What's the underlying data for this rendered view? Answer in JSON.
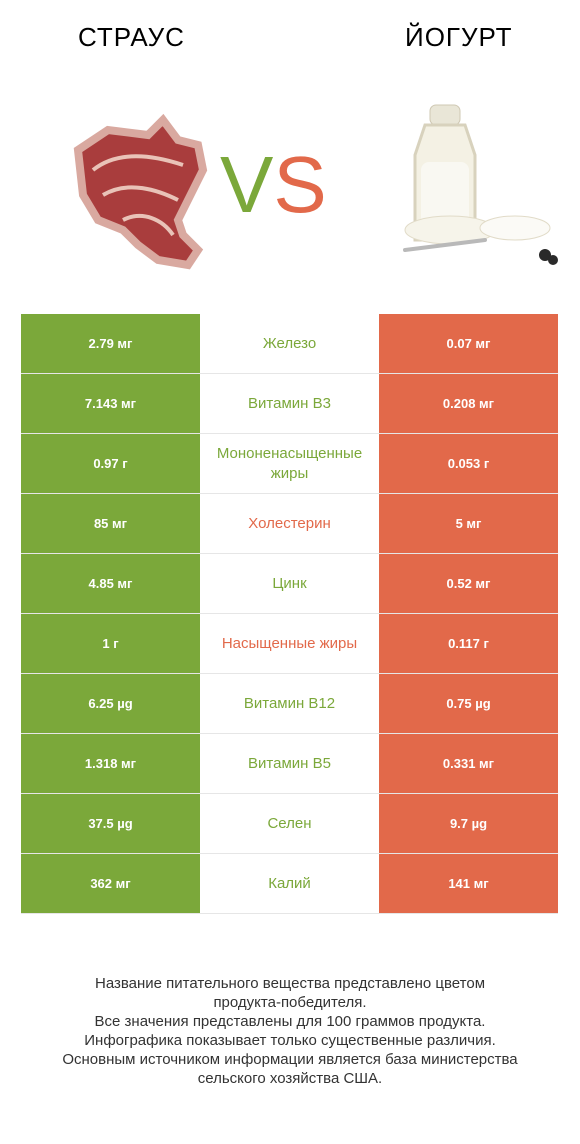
{
  "header": {
    "left_title": "СТРАУС",
    "right_title": "ЙОГУРТ",
    "vs_v": "V",
    "vs_s": "S"
  },
  "colors": {
    "green": "#7ba83a",
    "red": "#e2694a"
  },
  "images": {
    "left": "steak-icon",
    "right": "yogurt-bottle-icon"
  },
  "rows": [
    {
      "left": "2.79 мг",
      "name": "Железо",
      "right": "0.07 мг",
      "winner": "left"
    },
    {
      "left": "7.143 мг",
      "name": "Витамин B3",
      "right": "0.208 мг",
      "winner": "left"
    },
    {
      "left": "0.97 г",
      "name": "Мононенасыщенные жиры",
      "right": "0.053 г",
      "winner": "left"
    },
    {
      "left": "85 мг",
      "name": "Холестерин",
      "right": "5 мг",
      "winner": "right"
    },
    {
      "left": "4.85 мг",
      "name": "Цинк",
      "right": "0.52 мг",
      "winner": "left"
    },
    {
      "left": "1 г",
      "name": "Насыщенные жиры",
      "right": "0.117 г",
      "winner": "right"
    },
    {
      "left": "6.25 µg",
      "name": "Витамин B12",
      "right": "0.75 µg",
      "winner": "left"
    },
    {
      "left": "1.318 мг",
      "name": "Витамин B5",
      "right": "0.331 мг",
      "winner": "left"
    },
    {
      "left": "37.5 µg",
      "name": "Селен",
      "right": "9.7 µg",
      "winner": "left"
    },
    {
      "left": "362 мг",
      "name": "Калий",
      "right": "141 мг",
      "winner": "left"
    }
  ],
  "footer": {
    "line1": "Название питательного вещества представлено цветом",
    "line2": "продукта-победителя.",
    "line3": "Все значения представлены для 100 граммов продукта.",
    "line4": "Инфографика показывает только существенные различия.",
    "line5": "Основным источником информации является база министерства",
    "line6": "сельского хозяйства США."
  }
}
